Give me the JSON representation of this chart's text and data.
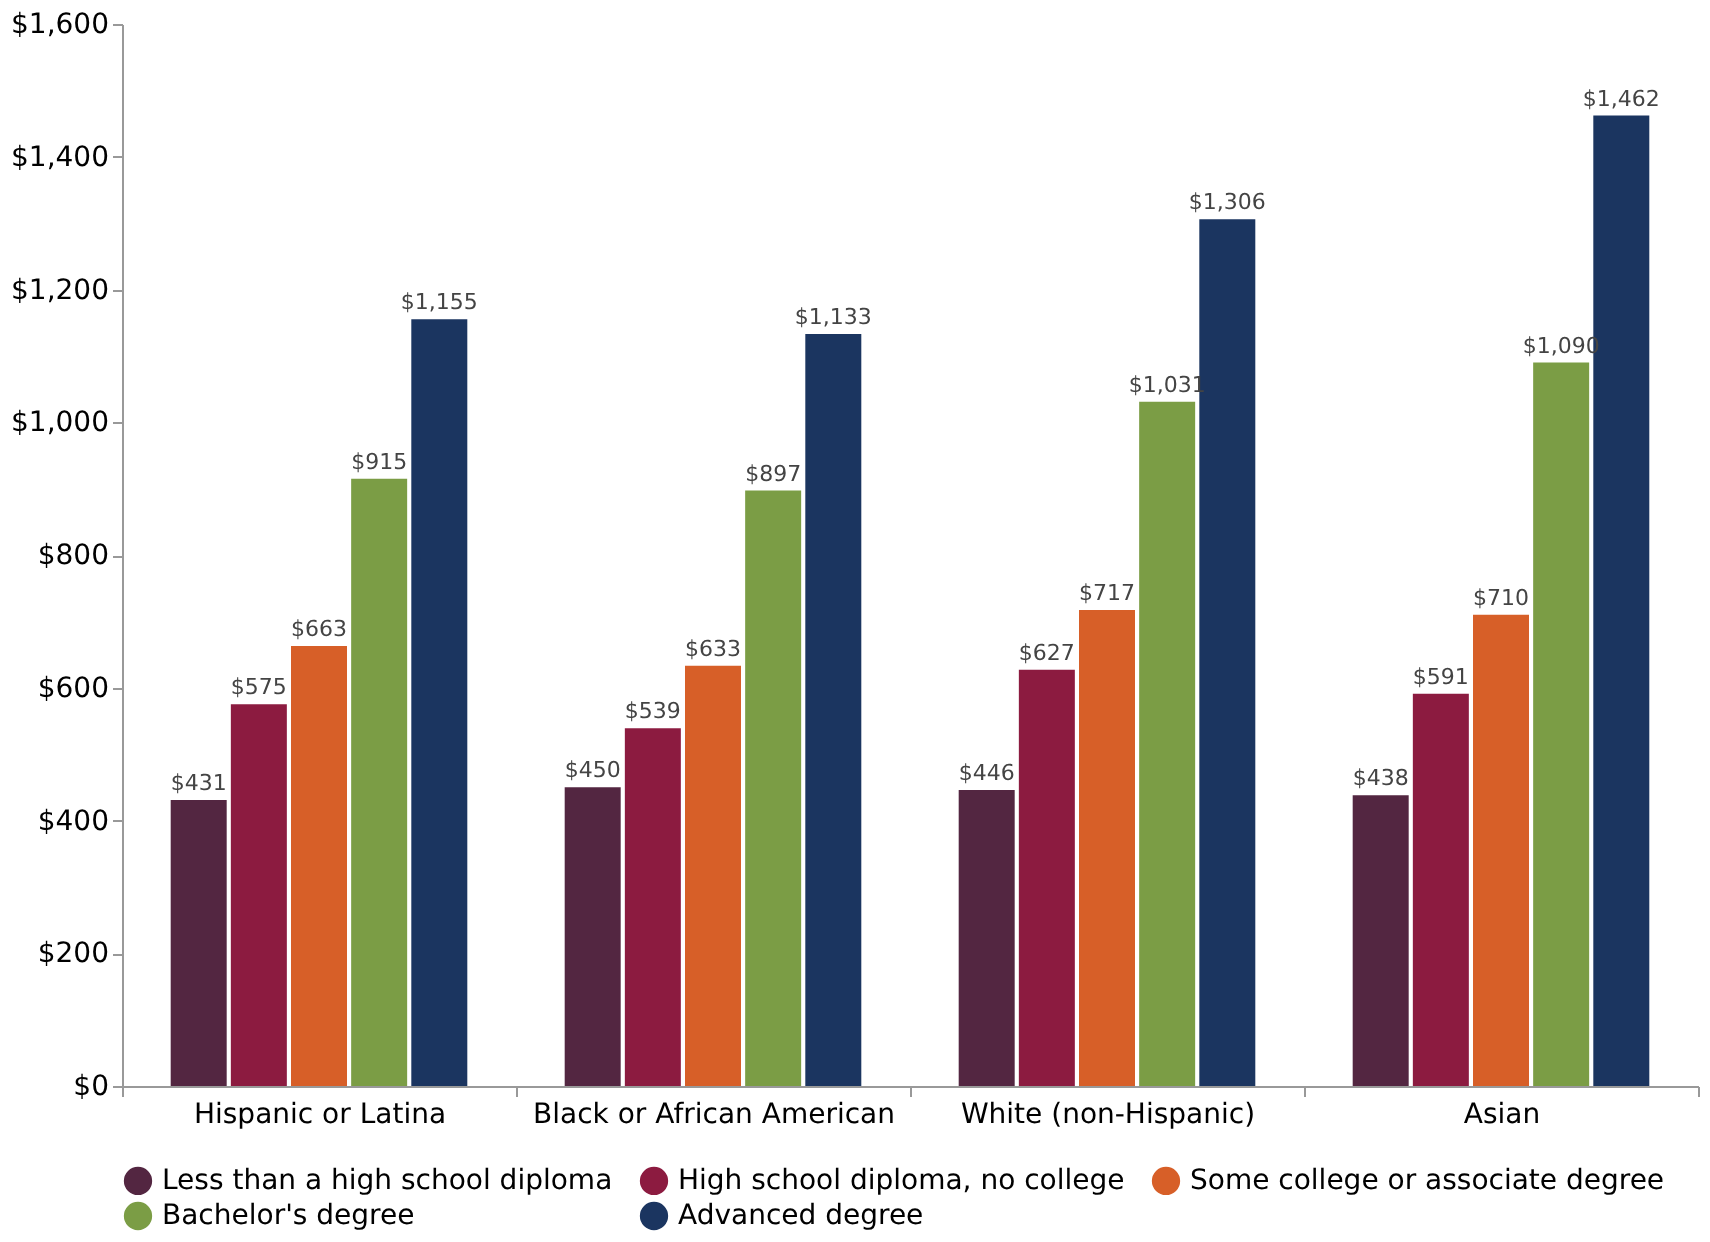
{
  "chart_data": {
    "type": "bar",
    "categories": [
      "Hispanic or Latina",
      "Black or African American",
      "White (non-Hispanic)",
      "Asian"
    ],
    "series": [
      {
        "name": "Less than a high school diploma",
        "color": "#532641",
        "values": [
          431,
          450,
          446,
          438
        ],
        "value_labels": [
          "$431",
          "$450",
          "$446",
          "$438"
        ]
      },
      {
        "name": "High school diploma, no college",
        "color": "#8c1b40",
        "values": [
          575,
          539,
          627,
          591
        ],
        "value_labels": [
          "$575",
          "$539",
          "$627",
          "$591"
        ]
      },
      {
        "name": "Some college or associate degree",
        "color": "#d75f28",
        "values": [
          663,
          633,
          717,
          710
        ],
        "value_labels": [
          "$663",
          "$633",
          "$717",
          "$710"
        ]
      },
      {
        "name": "Bachelor's degree",
        "color": "#7b9d45",
        "values": [
          915,
          897,
          1031,
          1090
        ],
        "value_labels": [
          "$915",
          "$897",
          "$1,031",
          "$1,090"
        ]
      },
      {
        "name": "Advanced degree",
        "color": "#1b3560",
        "values": [
          1155,
          1133,
          1306,
          1462
        ],
        "value_labels": [
          "$1,155",
          "$1,133",
          "$1,306",
          "$1,462"
        ]
      }
    ],
    "ylim": [
      0,
      1600
    ],
    "yticks": [
      {
        "value": 0,
        "label": "$0"
      },
      {
        "value": 200,
        "label": "$200"
      },
      {
        "value": 400,
        "label": "$400"
      },
      {
        "value": 600,
        "label": "$600"
      },
      {
        "value": 800,
        "label": "$800"
      },
      {
        "value": 1000,
        "label": "$1,000"
      },
      {
        "value": 1200,
        "label": "$1,200"
      },
      {
        "value": 1400,
        "label": "$1,400"
      },
      {
        "value": 1600,
        "label": "$1,600"
      }
    ],
    "grid": false,
    "legend": "bottom"
  }
}
